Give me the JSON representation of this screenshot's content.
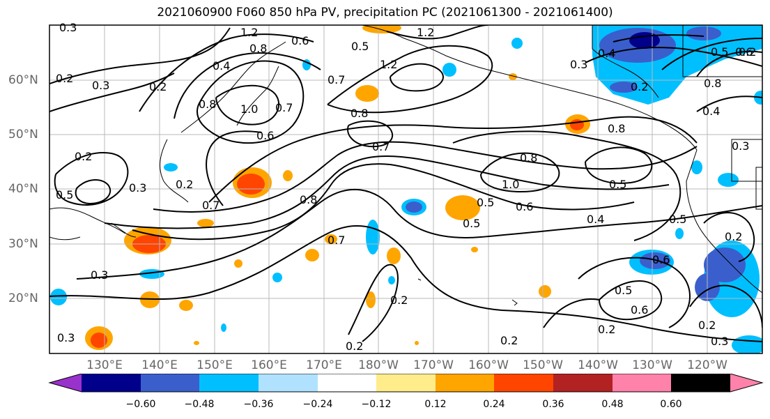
{
  "title": "2021060900 F060 850 hPa PV, precipitation PC (2021061300 - 2021061400)",
  "lat_labels": [
    "60°N",
    "50°N",
    "40°N",
    "30°N",
    "20°N"
  ],
  "lon_labels": [
    "130°E",
    "140°E",
    "150°E",
    "160°E",
    "170°E",
    "180°W",
    "170°W",
    "160°W",
    "150°W",
    "140°W",
    "130°W",
    "120°W"
  ],
  "colorbar": {
    "tick_labels": [
      "−0.60",
      "−0.48",
      "−0.36",
      "−0.24",
      "−0.12",
      "0.12",
      "0.24",
      "0.36",
      "0.48",
      "0.60"
    ],
    "colors": [
      "#9932cc",
      "#00008b",
      "#3a5fcd",
      "#00bfff",
      "#b0e2ff",
      "#ffffff",
      "#ffec8b",
      "#ffa500",
      "#ff4500",
      "#b22222",
      "#ff82ab"
    ]
  },
  "contour_labels": [
    "0.3",
    "1.2",
    "1.2",
    "0.8",
    "0.6",
    "0.5",
    "1.2",
    "0.2",
    "0.3",
    "0.2",
    "0.4",
    "0.8",
    "1.0",
    "0.7",
    "0.8",
    "0.7",
    "0.8",
    "0.6",
    "0.2",
    "0.5",
    "0.7",
    "0.3",
    "0.8",
    "0.5",
    "0.6",
    "0.4",
    "1.0",
    "0.5",
    "0.8",
    "0.7",
    "0.4",
    "0.3",
    "0.2",
    "0.3",
    "0.5",
    "0.6",
    "0.2",
    "0.2",
    "0.2",
    "0.2",
    "0.6",
    "0.5",
    "0.2",
    "0.3",
    "0.4",
    "0.6",
    "0.8",
    "0.5",
    "0.3",
    "0.5",
    "0.2",
    "0.2",
    "0.7",
    "0.2",
    "0.3"
  ]
}
